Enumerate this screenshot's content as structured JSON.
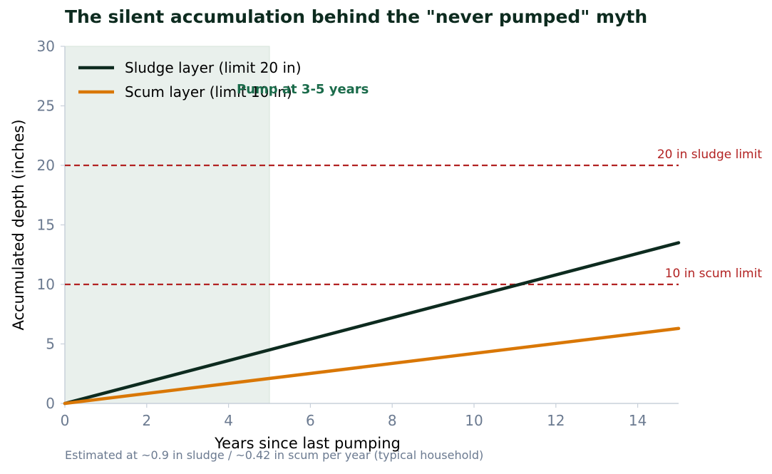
{
  "chart_data": {
    "type": "line",
    "title": "The silent accumulation behind the \"never pumped\" myth",
    "xlabel": "Years since last pumping",
    "ylabel": "Accumulated depth (inches)",
    "xlim": [
      0,
      15
    ],
    "ylim": [
      0,
      30
    ],
    "x_ticks": [
      0,
      2,
      4,
      6,
      8,
      10,
      12,
      14
    ],
    "y_ticks": [
      0,
      5,
      10,
      15,
      20,
      25,
      30
    ],
    "grid": false,
    "legend_position": "top-left",
    "series": [
      {
        "name": "Sludge layer (limit 20 in)",
        "color": "#0d2b1f",
        "x": [
          0,
          15
        ],
        "y": [
          0,
          13.5
        ]
      },
      {
        "name": "Scum layer (limit 10 in)",
        "color": "#d97706",
        "x": [
          0,
          15
        ],
        "y": [
          0,
          6.3
        ]
      }
    ],
    "reference_lines": [
      {
        "y": 20,
        "label": "20 in sludge limit",
        "color": "#b22222",
        "style": "dashed"
      },
      {
        "y": 10,
        "label": "10 in scum limit",
        "color": "#b22222",
        "style": "dashed"
      }
    ],
    "shaded_region": {
      "x_start": 0,
      "x_end": 5,
      "label": "Pump at 3-5 years",
      "color": "#e9f0ec"
    },
    "footnote": "Estimated at ~0.9 in sludge / ~0.42 in scum per year (typical household)"
  }
}
